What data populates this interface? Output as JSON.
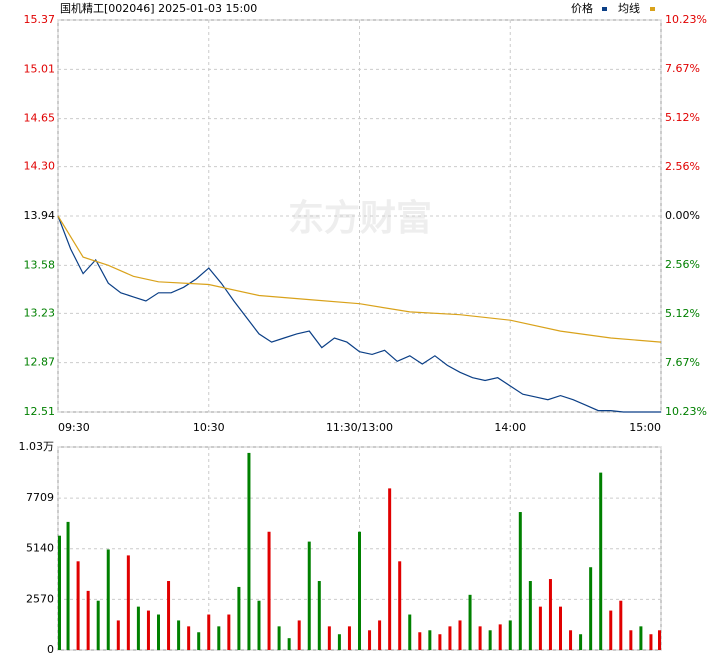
{
  "chart_data": [
    {
      "type": "line",
      "title": "国机精工[002046] 2025-01-03 15:00",
      "xlim": [
        0,
        240
      ],
      "xticks": [
        {
          "value": 0,
          "label": "09:30"
        },
        {
          "value": 60,
          "label": "10:30"
        },
        {
          "value": 120,
          "label": "11:30/13:00"
        },
        {
          "value": 180,
          "label": "14:00"
        },
        {
          "value": 240,
          "label": "15:00"
        }
      ],
      "ylim": [
        12.51,
        15.37
      ],
      "yticks": [
        15.37,
        15.01,
        14.65,
        {
          "value": 14.3,
          "label": "14.30"
        },
        13.94,
        13.58,
        13.23,
        12.87,
        12.51
      ],
      "y2lim": [
        -10.23,
        10.23
      ],
      "y2ticks": [
        {
          "value": 10.23,
          "label": "10.23%"
        },
        {
          "value": 7.67,
          "label": "7.67%"
        },
        {
          "value": 5.12,
          "label": "5.12%"
        },
        {
          "value": 2.56,
          "label": "2.56%"
        },
        {
          "value": 0,
          "label": "0.00%"
        },
        {
          "value": -2.56,
          "label": "2.56%"
        },
        {
          "value": -5.12,
          "label": "5.12%"
        },
        {
          "value": -7.67,
          "label": "7.67%"
        },
        {
          "value": -10.23,
          "label": "10.23%"
        }
      ],
      "up_color": "#e00000",
      "down_color": "#008000",
      "grid": true,
      "series": [
        {
          "name": "价格",
          "color": "#0b3f86",
          "x": [
            0,
            5,
            10,
            15,
            20,
            25,
            30,
            35,
            40,
            45,
            50,
            55,
            60,
            65,
            70,
            75,
            80,
            85,
            90,
            95,
            100,
            105,
            110,
            115,
            120,
            125,
            130,
            135,
            140,
            145,
            150,
            155,
            160,
            165,
            170,
            175,
            180,
            185,
            190,
            195,
            200,
            205,
            210,
            215,
            220,
            225,
            230,
            235,
            240
          ],
          "values": [
            13.94,
            13.7,
            13.52,
            13.62,
            13.45,
            13.38,
            13.35,
            13.32,
            13.38,
            13.38,
            13.42,
            13.48,
            13.56,
            13.45,
            13.32,
            13.2,
            13.08,
            13.02,
            13.05,
            13.08,
            13.1,
            12.98,
            13.05,
            13.02,
            12.95,
            12.93,
            12.96,
            12.88,
            12.92,
            12.86,
            12.92,
            12.85,
            12.8,
            12.76,
            12.74,
            12.76,
            12.7,
            12.64,
            12.62,
            12.6,
            12.63,
            12.6,
            12.56,
            12.52,
            12.52,
            12.51,
            12.51,
            12.51,
            12.51
          ]
        },
        {
          "name": "均线",
          "color": "#d9a21b",
          "x": [
            0,
            10,
            20,
            30,
            40,
            60,
            80,
            100,
            120,
            140,
            160,
            180,
            200,
            220,
            240
          ],
          "values": [
            13.94,
            13.64,
            13.58,
            13.5,
            13.46,
            13.44,
            13.36,
            13.33,
            13.3,
            13.24,
            13.22,
            13.18,
            13.1,
            13.05,
            13.02
          ]
        }
      ]
    },
    {
      "type": "bar",
      "xlim": [
        0,
        240
      ],
      "xticks": [
        0,
        60,
        120,
        180,
        240
      ],
      "ylim": [
        0,
        10300
      ],
      "yticks": [
        0,
        2570,
        5140,
        7709,
        {
          "value": 10300,
          "label": "1.03万"
        }
      ],
      "grid": true,
      "x": [
        0,
        4,
        8,
        12,
        16,
        20,
        24,
        28,
        32,
        36,
        40,
        44,
        48,
        52,
        56,
        60,
        64,
        68,
        72,
        76,
        80,
        84,
        88,
        92,
        96,
        100,
        104,
        108,
        112,
        116,
        120,
        124,
        128,
        132,
        136,
        140,
        144,
        148,
        152,
        156,
        160,
        164,
        168,
        172,
        176,
        180,
        184,
        188,
        192,
        196,
        200,
        204,
        208,
        212,
        216,
        220,
        224,
        228,
        232,
        236,
        240
      ],
      "values": [
        5800,
        6500,
        4500,
        3000,
        2500,
        5100,
        1500,
        4800,
        2200,
        2000,
        1800,
        3500,
        1500,
        1200,
        900,
        1800,
        1200,
        1800,
        3200,
        10000,
        2500,
        6000,
        1200,
        600,
        1500,
        5500,
        3500,
        1200,
        800,
        1200,
        6000,
        1000,
        1500,
        8200,
        4500,
        1800,
        900,
        1000,
        800,
        1200,
        1500,
        2800,
        1200,
        1000,
        1300,
        1500,
        7000,
        3500,
        2200,
        3600,
        2200,
        1000,
        800,
        4200,
        9000,
        2000,
        2500,
        1000,
        1200,
        800,
        1000
      ],
      "colors": [
        "#008000",
        "#008000",
        "#e00000",
        "#e00000",
        "#008000",
        "#008000",
        "#e00000",
        "#e00000",
        "#008000",
        "#e00000",
        "#008000",
        "#e00000",
        "#008000",
        "#e00000",
        "#008000",
        "#e00000",
        "#008000",
        "#e00000",
        "#008000",
        "#008000",
        "#008000",
        "#e00000",
        "#008000",
        "#008000",
        "#e00000",
        "#008000",
        "#008000",
        "#e00000",
        "#008000",
        "#e00000",
        "#008000",
        "#e00000",
        "#e00000",
        "#e00000",
        "#e00000",
        "#008000",
        "#e00000",
        "#008000",
        "#e00000",
        "#e00000",
        "#e00000",
        "#008000",
        "#e00000",
        "#008000",
        "#e00000",
        "#008000",
        "#008000",
        "#008000",
        "#e00000",
        "#e00000",
        "#e00000",
        "#e00000",
        "#008000",
        "#008000",
        "#008000",
        "#e00000",
        "#e00000",
        "#e00000",
        "#008000",
        "#e00000",
        "#e00000"
      ]
    }
  ],
  "watermark": "东方财富"
}
